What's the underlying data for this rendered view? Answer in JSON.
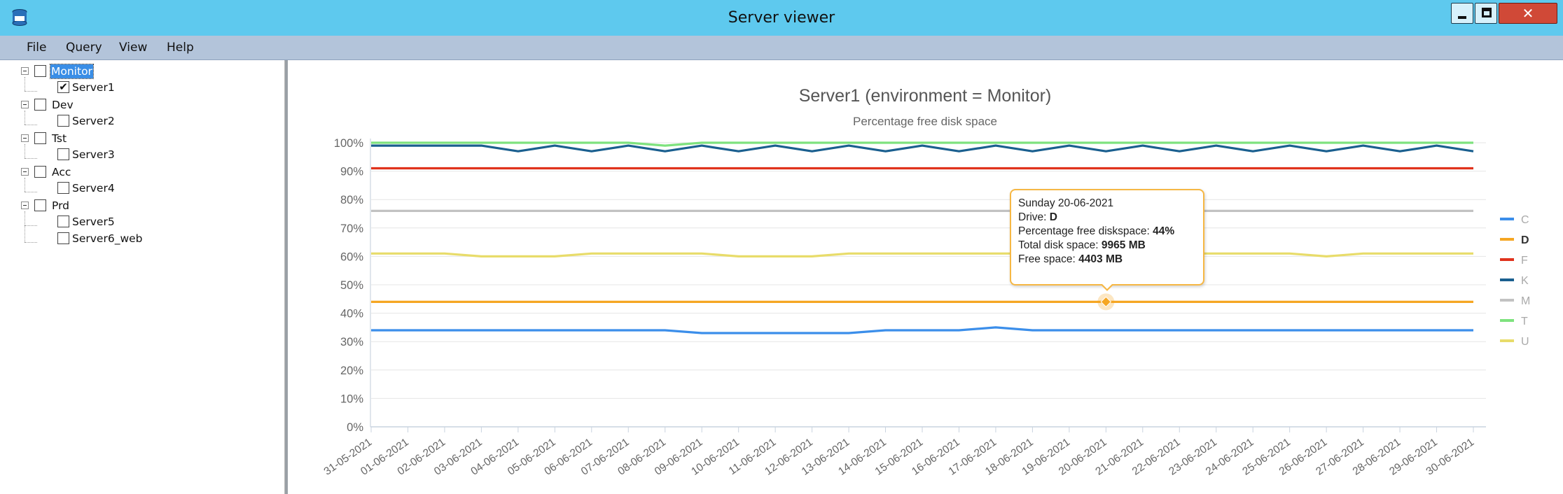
{
  "window": {
    "title": "Server viewer",
    "icon": "sql-database-icon",
    "buttons": {
      "minimize": "minimize-icon",
      "maximize": "maximize-icon",
      "close": "close-icon"
    }
  },
  "menu": {
    "items": [
      "File",
      "Query",
      "View",
      "Help"
    ]
  },
  "tree": {
    "nodes": [
      {
        "label": "Monitor",
        "checked": false,
        "selected": true,
        "children": [
          {
            "label": "Server1",
            "checked": true
          }
        ]
      },
      {
        "label": "Dev",
        "checked": false,
        "children": [
          {
            "label": "Server2",
            "checked": false
          }
        ]
      },
      {
        "label": "Tst",
        "checked": false,
        "children": [
          {
            "label": "Server3",
            "checked": false
          }
        ]
      },
      {
        "label": "Acc",
        "checked": false,
        "children": [
          {
            "label": "Server4",
            "checked": false
          }
        ]
      },
      {
        "label": "Prd",
        "checked": false,
        "children": [
          {
            "label": "Server5",
            "checked": false
          },
          {
            "label": "Server6_web",
            "checked": false
          }
        ]
      }
    ]
  },
  "chart_data": {
    "type": "line",
    "title": "Server1 (environment = Monitor)",
    "subtitle": "Percentage free disk space",
    "xlabel": "",
    "ylabel": "",
    "ylim": [
      0,
      100
    ],
    "yticks": [
      "0%",
      "10%",
      "20%",
      "30%",
      "40%",
      "50%",
      "60%",
      "70%",
      "80%",
      "90%",
      "100%"
    ],
    "grid": true,
    "legend_position": "right",
    "categories": [
      "31-05-2021",
      "01-06-2021",
      "02-06-2021",
      "03-06-2021",
      "04-06-2021",
      "05-06-2021",
      "06-06-2021",
      "07-06-2021",
      "08-06-2021",
      "09-06-2021",
      "10-06-2021",
      "11-06-2021",
      "12-06-2021",
      "13-06-2021",
      "14-06-2021",
      "15-06-2021",
      "16-06-2021",
      "17-06-2021",
      "18-06-2021",
      "19-06-2021",
      "20-06-2021",
      "21-06-2021",
      "22-06-2021",
      "23-06-2021",
      "24-06-2021",
      "25-06-2021",
      "26-06-2021",
      "27-06-2021",
      "28-06-2021",
      "29-06-2021",
      "30-06-2021"
    ],
    "series": [
      {
        "name": "C",
        "color": "#3b8eea",
        "values": [
          34,
          34,
          34,
          34,
          34,
          34,
          34,
          34,
          34,
          33,
          33,
          33,
          33,
          33,
          34,
          34,
          34,
          35,
          34,
          34,
          34,
          34,
          34,
          34,
          34,
          34,
          34,
          34,
          34,
          34,
          34
        ]
      },
      {
        "name": "D",
        "color": "#f5a623",
        "values": [
          44,
          44,
          44,
          44,
          44,
          44,
          44,
          44,
          44,
          44,
          44,
          44,
          44,
          44,
          44,
          44,
          44,
          44,
          44,
          44,
          44,
          44,
          44,
          44,
          44,
          44,
          44,
          44,
          44,
          44,
          44
        ]
      },
      {
        "name": "F",
        "color": "#e0331d",
        "values": [
          91,
          91,
          91,
          91,
          91,
          91,
          91,
          91,
          91,
          91,
          91,
          91,
          91,
          91,
          91,
          91,
          91,
          91,
          91,
          91,
          91,
          91,
          91,
          91,
          91,
          91,
          91,
          91,
          91,
          91,
          91
        ]
      },
      {
        "name": "K",
        "color": "#1a5f8f",
        "values": [
          99,
          99,
          99,
          99,
          97,
          99,
          97,
          99,
          97,
          99,
          97,
          99,
          97,
          99,
          97,
          99,
          97,
          99,
          97,
          99,
          97,
          99,
          97,
          99,
          97,
          99,
          97,
          99,
          97,
          99,
          97
        ]
      },
      {
        "name": "M",
        "color": "#c2c2c2",
        "values": [
          76,
          76,
          76,
          76,
          76,
          76,
          76,
          76,
          76,
          76,
          76,
          76,
          76,
          76,
          76,
          76,
          76,
          76,
          76,
          76,
          76,
          76,
          76,
          76,
          76,
          76,
          76,
          76,
          76,
          76,
          76
        ]
      },
      {
        "name": "T",
        "color": "#7ee27e",
        "values": [
          100,
          100,
          100,
          100,
          100,
          100,
          100,
          100,
          99,
          100,
          100,
          100,
          100,
          100,
          100,
          100,
          100,
          100,
          100,
          100,
          100,
          100,
          100,
          100,
          100,
          100,
          100,
          100,
          100,
          100,
          100
        ]
      },
      {
        "name": "U",
        "color": "#e8dc6a",
        "values": [
          61,
          61,
          61,
          60,
          60,
          60,
          61,
          61,
          61,
          61,
          60,
          60,
          60,
          61,
          61,
          61,
          61,
          61,
          61,
          61,
          61,
          61,
          61,
          61,
          61,
          61,
          60,
          61,
          61,
          61,
          61
        ]
      }
    ],
    "highlight": {
      "series": "D",
      "index": 20
    },
    "tooltip": {
      "date": "Sunday 20-06-2021",
      "drive_label": "Drive: ",
      "drive": "D",
      "pct_label": "Percentage free diskspace: ",
      "pct": "44%",
      "total_label": "Total disk space: ",
      "total": "9965 MB",
      "free_label": "Free space: ",
      "free": "4403 MB"
    }
  }
}
